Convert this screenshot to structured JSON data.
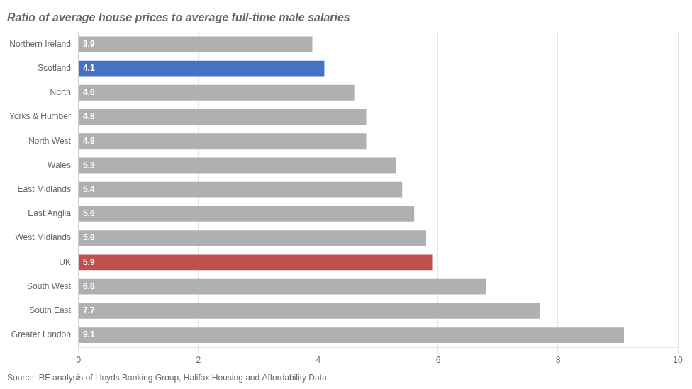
{
  "chart_data": {
    "type": "bar",
    "orientation": "horizontal",
    "title": "Ratio of average house prices to average full-time male salaries",
    "annotation": "Source: RF analysis of Lloyds Banking Group, Halifax Housing and Affordability Data",
    "categories": [
      "Greater London",
      "South East",
      "South West",
      "UK",
      "West Midlands",
      "East Anglia",
      "East Midlands",
      "Wales",
      "North West",
      "Yorks & Humber",
      "North",
      "Scotland",
      "Northern Ireland"
    ],
    "values": [
      9.1,
      7.7,
      6.8,
      5.9,
      5.8,
      5.6,
      5.4,
      5.3,
      4.8,
      4.8,
      4.6,
      4.1,
      3.9
    ],
    "colors": [
      "#b0b0b0",
      "#b0b0b0",
      "#b0b0b0",
      "#c0504d",
      "#b0b0b0",
      "#b0b0b0",
      "#b0b0b0",
      "#b0b0b0",
      "#b0b0b0",
      "#b0b0b0",
      "#b0b0b0",
      "#4472c4",
      "#b0b0b0"
    ],
    "xlim": [
      0,
      10
    ],
    "xticks": [
      0,
      2,
      4,
      6,
      8,
      10
    ],
    "grid": true,
    "data_labels": true
  }
}
